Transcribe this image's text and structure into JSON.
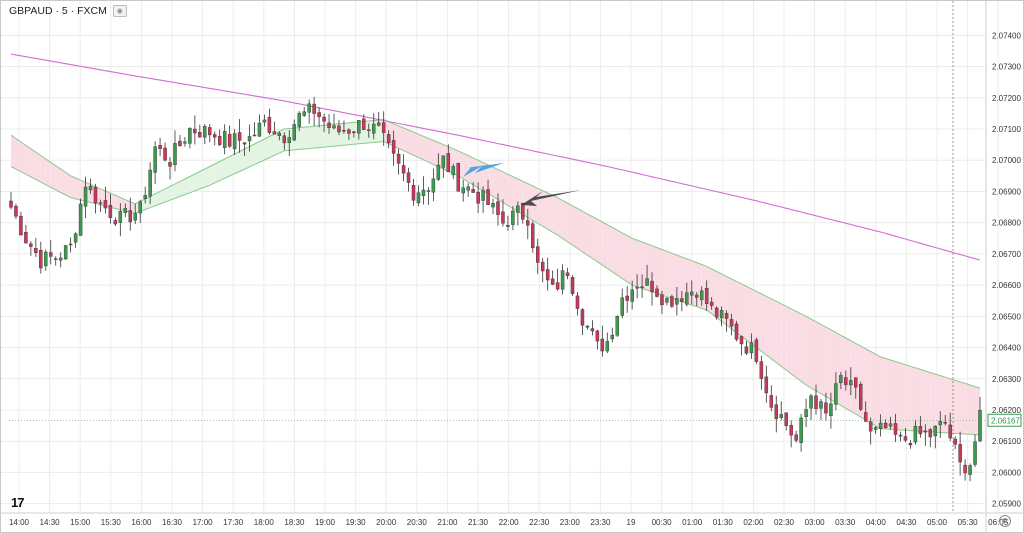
{
  "header": {
    "symbol": "GBPAUD · 5 · FXCM"
  },
  "colors": {
    "bull": "#3d9a4f",
    "bear": "#c8385a",
    "ma_long": "#d36cd6",
    "band_line": "#8cc98c",
    "band_fill_bull": "#e4f4e2",
    "band_fill_bear": "#fadce4",
    "grid": "#ececec",
    "arrow_blue": "#3d9fe0",
    "arrow_dark": "#333333"
  },
  "chart_data": {
    "type": "candlestick",
    "y_ticks": [
      "2.07400",
      "2.07300",
      "2.07200",
      "2.07100",
      "2.07000",
      "2.06900",
      "2.06800",
      "2.06700",
      "2.06600",
      "2.06500",
      "2.06400",
      "2.06300",
      "2.06200",
      "2.06100",
      "2.06000",
      "2.05900"
    ],
    "ylim": [
      2.0587,
      2.0751
    ],
    "x_ticks": [
      "14:00",
      "14:30",
      "15:00",
      "15:30",
      "16:00",
      "16:30",
      "17:00",
      "17:30",
      "18:00",
      "18:30",
      "19:00",
      "19:30",
      "20:00",
      "20:30",
      "21:00",
      "21:30",
      "22:00",
      "22:30",
      "23:00",
      "23:30",
      "19",
      "00:30",
      "01:00",
      "01:30",
      "02:00",
      "02:30",
      "03:00",
      "03:30",
      "04:00",
      "04:30",
      "05:00",
      "05:30",
      "06:05"
    ],
    "last_price": "2.06167",
    "close_anchors": [
      [
        0,
        2.0685
      ],
      [
        3,
        2.0675
      ],
      [
        6,
        2.0668
      ],
      [
        9,
        2.0669
      ],
      [
        12,
        2.0672
      ],
      [
        15,
        2.0693
      ],
      [
        18,
        2.0686
      ],
      [
        22,
        2.0681
      ],
      [
        26,
        2.0684
      ],
      [
        29,
        2.0704
      ],
      [
        32,
        2.07
      ],
      [
        36,
        2.071
      ],
      [
        40,
        2.0709
      ],
      [
        44,
        2.0706
      ],
      [
        48,
        2.0707
      ],
      [
        51,
        2.0712
      ],
      [
        55,
        2.0708
      ],
      [
        58,
        2.0714
      ],
      [
        61,
        2.0716
      ],
      [
        65,
        2.0709
      ],
      [
        68,
        2.071
      ],
      [
        71,
        2.0712
      ],
      [
        74,
        2.0709
      ],
      [
        77,
        2.07
      ],
      [
        81,
        2.069
      ],
      [
        84,
        2.0692
      ],
      [
        87,
        2.07
      ],
      [
        90,
        2.0693
      ],
      [
        93,
        2.069
      ],
      [
        96,
        2.0686
      ],
      [
        99,
        2.068
      ],
      [
        102,
        2.0683
      ],
      [
        104,
        2.0682
      ],
      [
        106,
        2.0666
      ],
      [
        109,
        2.0658
      ],
      [
        112,
        2.0665
      ],
      [
        115,
        2.065
      ],
      [
        118,
        2.064
      ],
      [
        120,
        2.0642
      ],
      [
        123,
        2.0656
      ],
      [
        126,
        2.0661
      ],
      [
        129,
        2.066
      ],
      [
        132,
        2.0655
      ],
      [
        135,
        2.0657
      ],
      [
        138,
        2.0659
      ],
      [
        141,
        2.0652
      ],
      [
        144,
        2.0648
      ],
      [
        147,
        2.0642
      ],
      [
        150,
        2.0638
      ],
      [
        153,
        2.0622
      ],
      [
        155,
        2.0618
      ],
      [
        158,
        2.061
      ],
      [
        161,
        2.0625
      ],
      [
        164,
        2.0618
      ],
      [
        167,
        2.063
      ],
      [
        170,
        2.0625
      ],
      [
        173,
        2.0612
      ],
      [
        176,
        2.0614
      ],
      [
        179,
        2.061
      ],
      [
        182,
        2.0612
      ],
      [
        185,
        2.0612
      ],
      [
        188,
        2.0616
      ],
      [
        191,
        2.0602
      ],
      [
        193,
        2.0603
      ],
      [
        195,
        2.0617
      ]
    ],
    "ma_long_anchors": [
      [
        0,
        2.0734
      ],
      [
        25,
        2.0727
      ],
      [
        55,
        2.0719
      ],
      [
        90,
        2.0708
      ],
      [
        120,
        2.0698
      ],
      [
        150,
        2.0687
      ],
      [
        175,
        2.0677
      ],
      [
        195,
        2.0668
      ]
    ],
    "band_upper_anchors": [
      [
        0,
        2.0708
      ],
      [
        12,
        2.0695
      ],
      [
        25,
        2.0686
      ],
      [
        40,
        2.0698
      ],
      [
        55,
        2.071
      ],
      [
        75,
        2.0713
      ],
      [
        90,
        2.0703
      ],
      [
        110,
        2.0688
      ],
      [
        125,
        2.0675
      ],
      [
        140,
        2.0666
      ],
      [
        160,
        2.065
      ],
      [
        175,
        2.0637
      ],
      [
        195,
        2.0627
      ]
    ],
    "band_lower_anchors": [
      [
        0,
        2.0698
      ],
      [
        12,
        2.0688
      ],
      [
        25,
        2.0683
      ],
      [
        40,
        2.0692
      ],
      [
        55,
        2.0703
      ],
      [
        75,
        2.0706
      ],
      [
        90,
        2.0695
      ],
      [
        110,
        2.0676
      ],
      [
        125,
        2.066
      ],
      [
        140,
        2.0652
      ],
      [
        160,
        2.0628
      ],
      [
        175,
        2.0614
      ],
      [
        195,
        2.0612
      ]
    ]
  }
}
